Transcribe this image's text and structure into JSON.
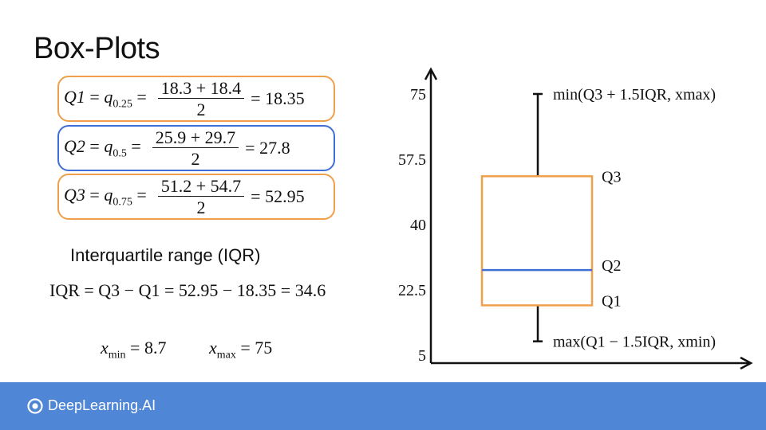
{
  "slide": {
    "title": "Box-Plots",
    "footer_brand": "DeepLearning.AI"
  },
  "colors": {
    "orange": "#f0a04b",
    "blue": "#3f6fd6",
    "footer": "#4f86d6"
  },
  "equations": [
    {
      "lhs": "Q1",
      "q": "q",
      "sub": "0.25",
      "num": "18.3 + 18.4",
      "den": "2",
      "result": "18.35",
      "color": "orange"
    },
    {
      "lhs": "Q2",
      "q": "q",
      "sub": "0.5",
      "num": "25.9 + 29.7",
      "den": "2",
      "result": "27.8",
      "color": "blue"
    },
    {
      "lhs": "Q3",
      "q": "q",
      "sub": "0.75",
      "num": "51.2 + 54.7",
      "den": "2",
      "result": "52.95",
      "color": "orange"
    }
  ],
  "iqr": {
    "heading": "Interquartile range (IQR)",
    "formula": "IQR = Q3 − Q1  = 52.95 − 18.35 = 34.6"
  },
  "extremes": {
    "xmin_label": "x",
    "xmin_sub": "min",
    "xmin_value": "= 8.7",
    "xmax_label": "x",
    "xmax_sub": "max",
    "xmax_value": "= 75"
  },
  "chart_data": {
    "type": "box",
    "y_ticks": [
      5,
      22.5,
      40,
      57.5,
      75
    ],
    "y_tick_labels": [
      "5",
      "22.5",
      "40",
      "57.5",
      "75"
    ],
    "ylim": [
      5,
      75
    ],
    "q1": 18.35,
    "median": 27.8,
    "q3": 52.95,
    "whisker_low": 8.7,
    "whisker_high": 75,
    "annotations": {
      "upper": "min(Q3 + 1.5IQR, xmax)",
      "q3": "Q3",
      "q2": "Q2",
      "q1": "Q1",
      "lower": "max(Q1 − 1.5IQR, xmin)"
    }
  }
}
